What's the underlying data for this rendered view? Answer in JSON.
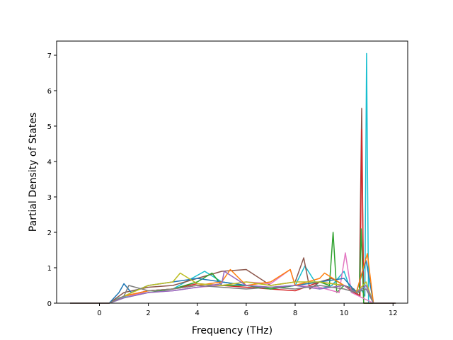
{
  "chart_data": {
    "type": "line",
    "title": "",
    "xlabel": "Frequency (THz)",
    "ylabel": "Partial Density of States",
    "xlim": [
      -1.75,
      12.6
    ],
    "ylim": [
      0,
      7.4
    ],
    "xticks": [
      0,
      2,
      4,
      6,
      8,
      10,
      12
    ],
    "yticks": [
      0,
      1,
      2,
      3,
      4,
      5,
      6,
      7
    ],
    "grid": false,
    "legend": "none",
    "series_colors": [
      "#1f77b4",
      "#ff7f0e",
      "#2ca02c",
      "#d62728",
      "#9467bd",
      "#8c564b",
      "#e377c2",
      "#7f7f7f",
      "#bcbd22",
      "#17becf"
    ],
    "series": [
      {
        "color": "#17becf",
        "x": [
          -1.2,
          0.4,
          0.8,
          2,
          3,
          4.3,
          5,
          6,
          7,
          8,
          8.4,
          9,
          9.5,
          10,
          10.3,
          10.7,
          10.85,
          10.92,
          11.0,
          11.2,
          12.1
        ],
        "y": [
          0,
          0,
          0.15,
          0.35,
          0.4,
          0.9,
          0.6,
          0.5,
          0.4,
          0.5,
          1.05,
          0.4,
          0.5,
          0.9,
          0.3,
          0.4,
          0.2,
          7.05,
          0,
          0,
          0
        ]
      },
      {
        "color": "#8c564b",
        "x": [
          -1.2,
          0.4,
          1,
          2,
          3,
          4,
          5,
          6,
          7,
          8,
          8.35,
          8.6,
          9,
          9.5,
          10,
          10.4,
          10.62,
          10.72,
          10.8,
          11.2,
          12.1
        ],
        "y": [
          0,
          0,
          0.3,
          0.45,
          0.5,
          0.7,
          0.9,
          0.95,
          0.5,
          0.6,
          1.28,
          0.4,
          0.6,
          0.7,
          0.5,
          0.4,
          0.2,
          5.5,
          0,
          0,
          0
        ]
      },
      {
        "color": "#d62728",
        "x": [
          -1.2,
          0.4,
          1,
          2,
          3,
          4,
          5,
          6,
          7,
          8,
          9,
          10,
          10.4,
          10.65,
          10.72,
          10.8,
          11.2,
          12.1
        ],
        "y": [
          0,
          0,
          0.2,
          0.35,
          0.4,
          0.55,
          0.5,
          0.45,
          0.4,
          0.35,
          0.6,
          0.5,
          0.3,
          0.2,
          4.9,
          0,
          0,
          0
        ]
      },
      {
        "color": "#2ca02c",
        "x": [
          -1.2,
          0.4,
          1,
          2,
          3,
          4,
          4.6,
          5,
          6,
          7,
          8,
          9,
          9.4,
          9.55,
          9.7,
          10,
          10.3,
          10.62,
          10.7,
          10.8,
          11.2,
          12.1
        ],
        "y": [
          0,
          0,
          0.15,
          0.3,
          0.4,
          0.6,
          0.85,
          0.5,
          0.5,
          0.4,
          0.5,
          0.6,
          0.5,
          2.0,
          0.3,
          0.5,
          0.4,
          0.3,
          2.1,
          0,
          0,
          0
        ]
      },
      {
        "color": "#e377c2",
        "x": [
          -1.2,
          0.4,
          1,
          2,
          3,
          4,
          5,
          6,
          7,
          7.8,
          8,
          9,
          9.8,
          10.05,
          10.3,
          10.6,
          11.2,
          12.1
        ],
        "y": [
          0,
          0,
          0.2,
          0.3,
          0.35,
          0.45,
          0.5,
          0.6,
          0.55,
          0.95,
          0.5,
          0.45,
          0.3,
          1.42,
          0.3,
          0.2,
          0,
          0
        ]
      },
      {
        "color": "#1f77b4",
        "x": [
          -1.2,
          0.4,
          0.8,
          1.0,
          1.3,
          2,
          3,
          4,
          5,
          6,
          7,
          8,
          9,
          10,
          10.5,
          10.9,
          11.2,
          12.1
        ],
        "y": [
          0,
          0,
          0.3,
          0.55,
          0.3,
          0.5,
          0.6,
          0.7,
          0.6,
          0.5,
          0.45,
          0.5,
          0.6,
          0.7,
          0.3,
          1.2,
          0,
          0
        ]
      },
      {
        "color": "#ff7f0e",
        "x": [
          -1.2,
          0.4,
          1,
          2,
          3,
          4,
          5,
          5.35,
          6,
          7,
          7.8,
          8,
          9,
          9.2,
          10,
          10.5,
          10.95,
          11.2,
          12.1
        ],
        "y": [
          0,
          0,
          0.2,
          0.35,
          0.4,
          0.5,
          0.6,
          0.95,
          0.5,
          0.6,
          0.95,
          0.5,
          0.7,
          0.85,
          0.5,
          0.3,
          1.4,
          0,
          0
        ]
      },
      {
        "color": "#bcbd22",
        "x": [
          -1.2,
          0.4,
          1,
          2,
          3,
          3.3,
          4,
          5,
          6,
          7,
          8,
          9,
          10,
          10.5,
          10.9,
          11.2,
          12.1
        ],
        "y": [
          0,
          0,
          0.2,
          0.5,
          0.6,
          0.85,
          0.55,
          0.5,
          0.6,
          0.5,
          0.6,
          0.6,
          0.5,
          0.3,
          0.6,
          0,
          0
        ]
      },
      {
        "color": "#9467bd",
        "x": [
          -1.2,
          0.4,
          1,
          2,
          3,
          4,
          5,
          5.1,
          6,
          7,
          8,
          9,
          10,
          10.5,
          10.9,
          11.2,
          12.1
        ],
        "y": [
          0,
          0,
          0.15,
          0.3,
          0.35,
          0.45,
          0.55,
          0.9,
          0.5,
          0.45,
          0.5,
          0.4,
          0.5,
          0.3,
          0.5,
          0,
          0
        ]
      },
      {
        "color": "#7f7f7f",
        "x": [
          -1.2,
          0.4,
          1,
          1.2,
          2,
          3,
          4,
          5,
          6,
          7,
          8,
          9,
          10,
          10.5,
          10.9,
          11.2,
          12.1
        ],
        "y": [
          0,
          0,
          0.2,
          0.5,
          0.35,
          0.4,
          0.5,
          0.45,
          0.4,
          0.45,
          0.4,
          0.5,
          0.4,
          0.3,
          0.4,
          0,
          0
        ]
      }
    ]
  }
}
